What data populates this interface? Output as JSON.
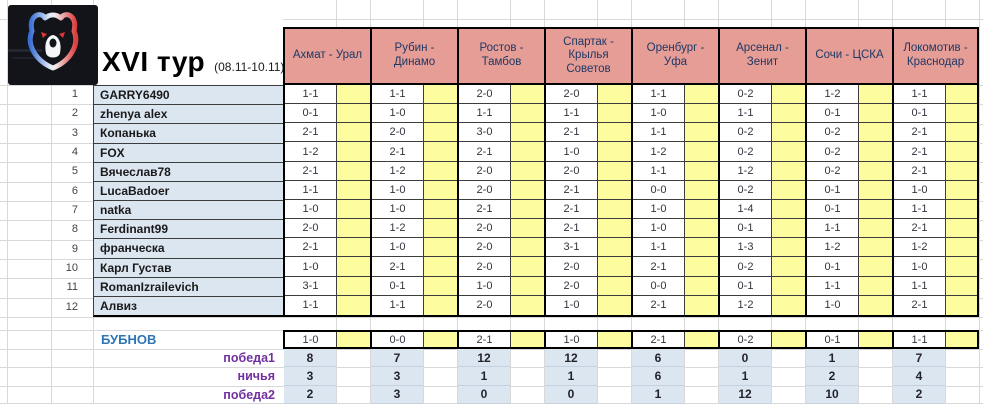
{
  "title": {
    "round": "XVI тур",
    "dates": "(08.11-10.11)"
  },
  "logo": {
    "name": "rpl-bear-logo"
  },
  "colors": {
    "header_bg": "#e59d96",
    "header_text": "#1f3864",
    "result_bg": "#fdfda0",
    "name_bg": "#dce6f1",
    "summary_bg": "#dce6f1",
    "expert_text": "#2e75b6",
    "summary_label": "#7030a0"
  },
  "matches": [
    "Ахмат - Урал",
    "Рубин - Динамо",
    "Ростов - Тамбов",
    "Спартак - Крылья Советов",
    "Оренбург - Уфа",
    "Арсенал - Зенит",
    "Сочи - ЦСКА",
    "Локомотив - Краснодар"
  ],
  "players": [
    {
      "num": "1",
      "name": "GARRY6490",
      "predictions": [
        "1-1",
        "1-1",
        "2-0",
        "2-0",
        "1-1",
        "0-2",
        "1-2",
        "1-1"
      ]
    },
    {
      "num": "2",
      "name": "zhenya alex",
      "predictions": [
        "0-1",
        "1-0",
        "1-1",
        "1-1",
        "1-0",
        "1-1",
        "0-1",
        "0-1"
      ]
    },
    {
      "num": "3",
      "name": "Копанька",
      "predictions": [
        "2-1",
        "2-0",
        "3-0",
        "2-1",
        "1-1",
        "0-2",
        "0-2",
        "2-1"
      ]
    },
    {
      "num": "4",
      "name": "FOX",
      "predictions": [
        "1-2",
        "2-1",
        "2-1",
        "1-0",
        "1-2",
        "0-2",
        "0-2",
        "2-1"
      ]
    },
    {
      "num": "5",
      "name": "Вячеслав78",
      "predictions": [
        "2-1",
        "1-2",
        "2-0",
        "2-0",
        "1-1",
        "1-2",
        "0-2",
        "2-1"
      ]
    },
    {
      "num": "6",
      "name": "LucaBadoer",
      "predictions": [
        "1-1",
        "1-0",
        "2-0",
        "2-1",
        "0-0",
        "0-2",
        "0-1",
        "1-0"
      ]
    },
    {
      "num": "7",
      "name": "natka",
      "predictions": [
        "1-0",
        "1-0",
        "2-1",
        "2-1",
        "1-0",
        "1-4",
        "0-1",
        "1-1"
      ]
    },
    {
      "num": "8",
      "name": "Ferdinant99",
      "predictions": [
        "2-0",
        "1-2",
        "2-0",
        "2-1",
        "1-0",
        "0-1",
        "1-1",
        "2-1"
      ]
    },
    {
      "num": "9",
      "name": "франческа",
      "predictions": [
        "2-1",
        "1-0",
        "2-0",
        "3-1",
        "1-1",
        "1-3",
        "1-2",
        "1-2"
      ]
    },
    {
      "num": "10",
      "name": "Карл Густав",
      "predictions": [
        "1-0",
        "2-1",
        "2-0",
        "2-0",
        "2-1",
        "0-2",
        "0-1",
        "1-0"
      ]
    },
    {
      "num": "11",
      "name": "RomanIzrailevich",
      "predictions": [
        "3-1",
        "0-1",
        "1-0",
        "2-0",
        "0-0",
        "0-1",
        "1-1",
        "1-1"
      ]
    },
    {
      "num": "12",
      "name": "Алвиз",
      "predictions": [
        "1-1",
        "1-1",
        "2-0",
        "1-0",
        "2-1",
        "1-2",
        "1-0",
        "2-1"
      ]
    }
  ],
  "expert": {
    "name": "БУБНОВ",
    "predictions": [
      "1-0",
      "0-0",
      "2-1",
      "1-0",
      "2-1",
      "0-2",
      "0-1",
      "1-1"
    ]
  },
  "summary": [
    {
      "label": "победа1",
      "values": [
        "8",
        "7",
        "12",
        "12",
        "6",
        "0",
        "1",
        "7"
      ]
    },
    {
      "label": "ничья",
      "values": [
        "3",
        "3",
        "1",
        "1",
        "6",
        "1",
        "2",
        "4"
      ]
    },
    {
      "label": "победа2",
      "values": [
        "2",
        "3",
        "0",
        "0",
        "1",
        "12",
        "10",
        "2"
      ]
    }
  ]
}
